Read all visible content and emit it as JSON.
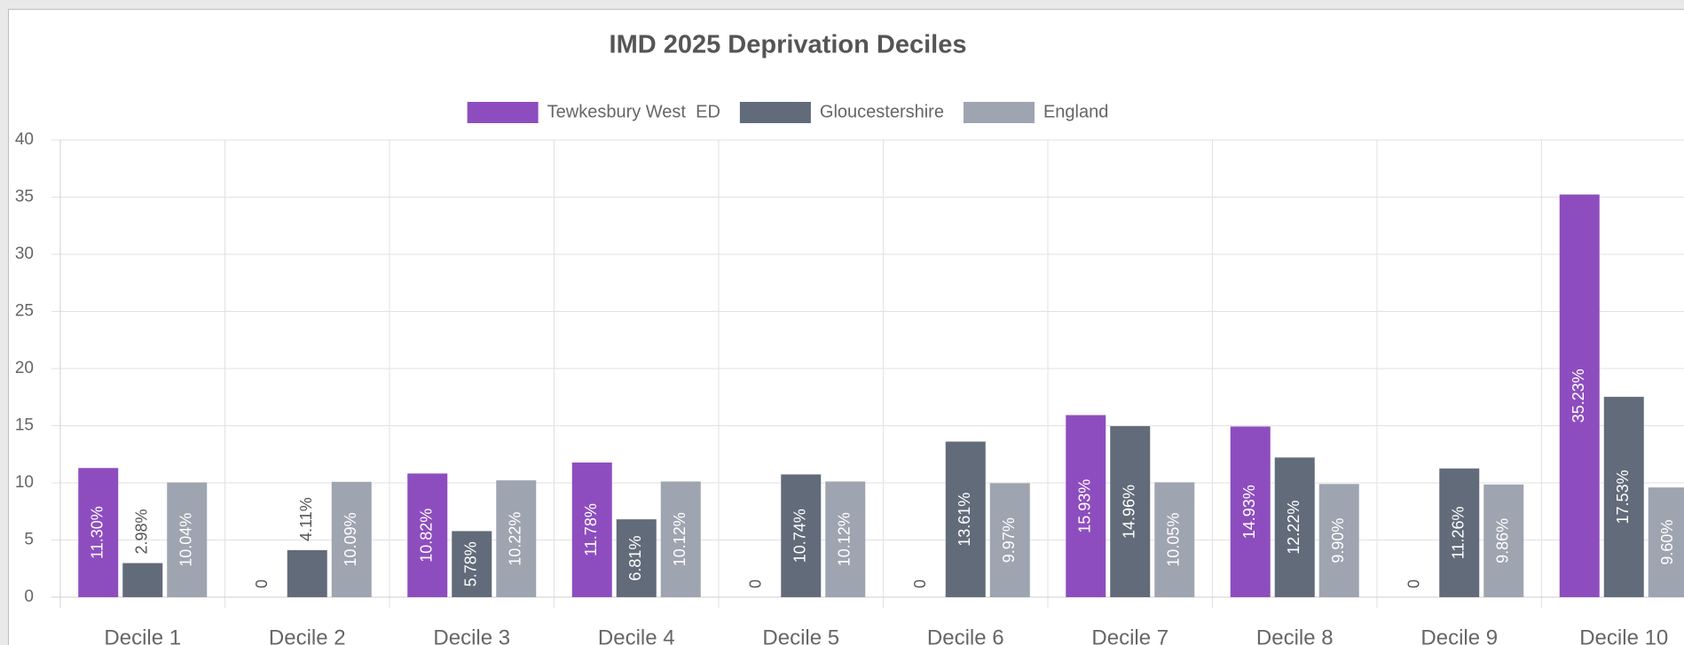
{
  "chart_data": {
    "type": "bar",
    "title": "IMD 2025 Deprivation Deciles",
    "categories": [
      "Decile 1",
      "Decile 2",
      "Decile 3",
      "Decile 4",
      "Decile 5",
      "Decile 6",
      "Decile 7",
      "Decile 8",
      "Decile 9",
      "Decile 10"
    ],
    "series": [
      {
        "name": "Tewkesbury West  ED",
        "color": "#8e4dbf",
        "values": [
          11.3,
          0,
          10.82,
          11.78,
          0,
          0,
          15.93,
          14.93,
          0,
          35.23
        ],
        "value_labels": [
          "11.30%",
          "0",
          "10.82%",
          "11.78%",
          "0",
          "0",
          "15.93%",
          "14.93%",
          "0",
          "35.23%"
        ]
      },
      {
        "name": "Gloucestershire",
        "color": "#626b7a",
        "values": [
          2.98,
          4.11,
          5.78,
          6.81,
          10.74,
          13.61,
          14.96,
          12.22,
          11.26,
          17.53
        ],
        "value_labels": [
          "2.98%",
          "4.11%",
          "5.78%",
          "6.81%",
          "10.74%",
          "13.61%",
          "14.96%",
          "12.22%",
          "11.26%",
          "17.53%"
        ]
      },
      {
        "name": "England",
        "color": "#9ea4b0",
        "values": [
          10.04,
          10.09,
          10.22,
          10.12,
          10.12,
          9.97,
          10.05,
          9.9,
          9.86,
          9.6
        ],
        "value_labels": [
          "10.04%",
          "10.09%",
          "10.22%",
          "10.12%",
          "10.12%",
          "9.97%",
          "10.05%",
          "9.90%",
          "9.86%",
          "9.60%"
        ]
      }
    ],
    "ylim": [
      0,
      40
    ],
    "yticks": [
      0,
      5,
      10,
      15,
      20,
      25,
      30,
      35,
      40
    ],
    "grid": true,
    "legend": "top"
  }
}
